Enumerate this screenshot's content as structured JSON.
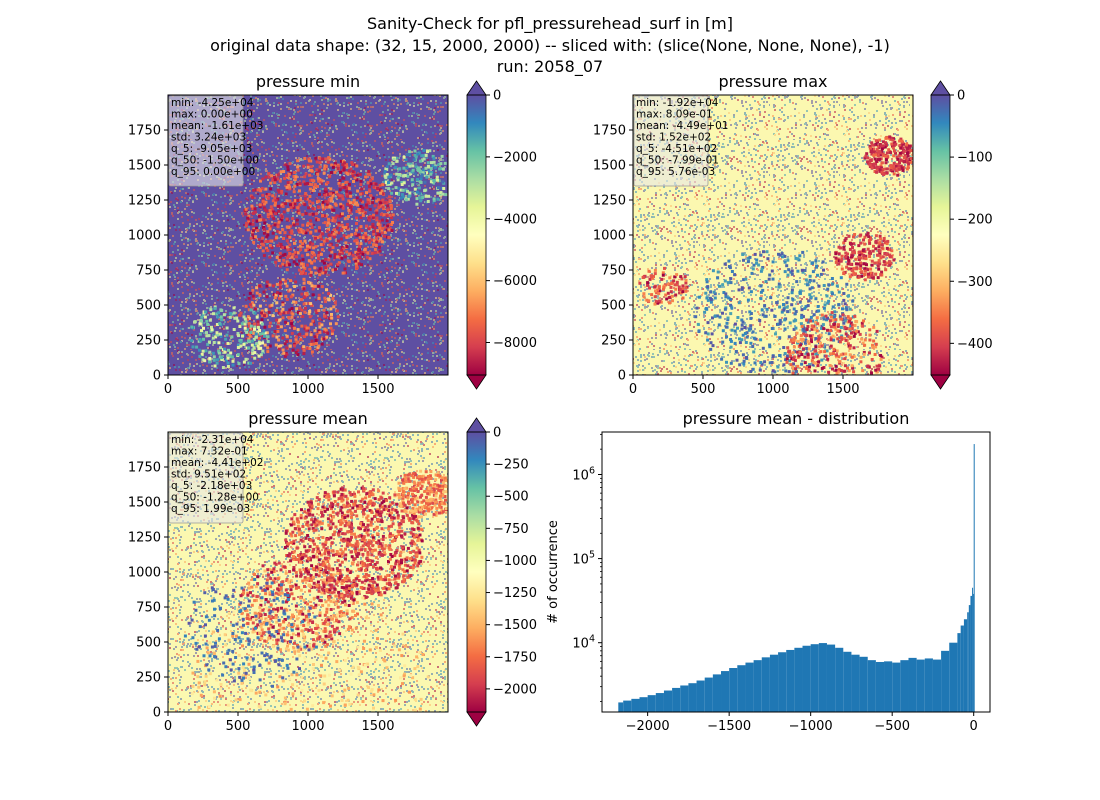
{
  "figure": {
    "title_lines": [
      "Sanity-Check for pfl_pressurehead_surf in [m]",
      "original data shape: (32, 15, 2000, 2000) -- sliced with: (slice(None, None, None), -1)",
      "run: 2058_07"
    ]
  },
  "chart_data": [
    {
      "type": "heatmap",
      "title": "pressure min",
      "xticks": [
        "0",
        "500",
        "1000",
        "1500"
      ],
      "yticks": [
        "0",
        "250",
        "500",
        "750",
        "1000",
        "1250",
        "1500",
        "1750"
      ],
      "xlim": [
        0,
        2000
      ],
      "ylim": [
        0,
        2000
      ],
      "colormap": "Spectral",
      "colorbar": {
        "ticks": [
          "0",
          "−2000",
          "−4000",
          "−6000",
          "−8000"
        ],
        "tick_values": [
          0,
          -2000,
          -4000,
          -6000,
          -8000
        ],
        "range": [
          -9050,
          0
        ],
        "extend": "both"
      },
      "stats": [
        "min: -4.25e+04",
        "max: 0.00e+00",
        "mean: -1.61e+03",
        "std: 3.24e+03",
        "q_5: -9.05e+03",
        "q_50: -1.50e+00",
        "q_95: 0.00e+00"
      ],
      "base_color": "#5e4fa2"
    },
    {
      "type": "heatmap",
      "title": "pressure max",
      "xticks": [
        "0",
        "500",
        "1000",
        "1500"
      ],
      "yticks": [
        "0",
        "250",
        "500",
        "750",
        "1000",
        "1250",
        "1500",
        "1750"
      ],
      "xlim": [
        0,
        2000
      ],
      "ylim": [
        0,
        2000
      ],
      "colormap": "Spectral",
      "colorbar": {
        "ticks": [
          "0",
          "−100",
          "−200",
          "−300",
          "−400"
        ],
        "tick_values": [
          0,
          -100,
          -200,
          -300,
          -400
        ],
        "range": [
          -451,
          0
        ],
        "extend": "both"
      },
      "stats": [
        "min: -1.92e+04",
        "max: 8.09e-01",
        "mean: -4.49e+01",
        "std: 1.52e+02",
        "q_5: -4.51e+02",
        "q_50: -7.99e-01",
        "q_95: 5.76e-03"
      ],
      "base_color": "#fbf8b0"
    },
    {
      "type": "heatmap",
      "title": "pressure mean",
      "xticks": [
        "0",
        "500",
        "1000",
        "1500"
      ],
      "yticks": [
        "0",
        "250",
        "500",
        "750",
        "1000",
        "1250",
        "1500",
        "1750"
      ],
      "xlim": [
        0,
        2000
      ],
      "ylim": [
        0,
        2000
      ],
      "colormap": "Spectral",
      "colorbar": {
        "ticks": [
          "0",
          "−250",
          "−500",
          "−750",
          "−1000",
          "−1250",
          "−1500",
          "−1750",
          "−2000"
        ],
        "tick_values": [
          0,
          -250,
          -500,
          -750,
          -1000,
          -1250,
          -1500,
          -1750,
          -2000
        ],
        "range": [
          -2180,
          0
        ],
        "extend": "both"
      },
      "stats": [
        "min: -2.31e+04",
        "max: 7.32e-01",
        "mean: -4.41e+02",
        "std: 9.51e+02",
        "q_5: -2.18e+03",
        "q_50: -1.28e+00",
        "q_95: 1.99e-03"
      ],
      "base_color": "#fbf8b0"
    },
    {
      "type": "bar",
      "title": "pressure mean - distribution",
      "ylabel": "# of occurrence",
      "xlabel": "",
      "yscale": "log",
      "xlim": [
        -2280,
        100
      ],
      "ylim": [
        1500,
        3200000
      ],
      "xticks": [
        "−2000",
        "−1500",
        "−1000",
        "−500",
        "0"
      ],
      "xtick_values": [
        -2000,
        -1500,
        -1000,
        -500,
        0
      ],
      "yticks": [
        "10^4",
        "10^5",
        "10^6"
      ],
      "ytick_values": [
        10000,
        100000,
        1000000
      ],
      "bar_color": "#1f77b4",
      "x": [
        -2180,
        -2150,
        -2100,
        -2050,
        -2000,
        -1950,
        -1900,
        -1850,
        -1800,
        -1750,
        -1700,
        -1650,
        -1600,
        -1550,
        -1500,
        -1450,
        -1400,
        -1350,
        -1300,
        -1250,
        -1200,
        -1150,
        -1100,
        -1050,
        -1000,
        -950,
        -900,
        -850,
        -800,
        -750,
        -700,
        -650,
        -600,
        -550,
        -500,
        -450,
        -400,
        -350,
        -300,
        -250,
        -200,
        -150,
        -100,
        -80,
        -60,
        -40,
        -30,
        -20,
        -10,
        -5,
        0
      ],
      "values": [
        1950,
        2050,
        2150,
        2250,
        2380,
        2520,
        2700,
        2900,
        3100,
        3300,
        3550,
        3850,
        4200,
        4600,
        5000,
        5400,
        5800,
        6200,
        6700,
        7200,
        7700,
        8200,
        8700,
        9200,
        9600,
        9900,
        9500,
        8700,
        7800,
        7200,
        6800,
        6200,
        5900,
        6000,
        5800,
        6200,
        6600,
        6300,
        6500,
        6300,
        8000,
        10000,
        13000,
        16000,
        19000,
        23000,
        28000,
        36000,
        45000,
        38000,
        2300000
      ]
    }
  ]
}
